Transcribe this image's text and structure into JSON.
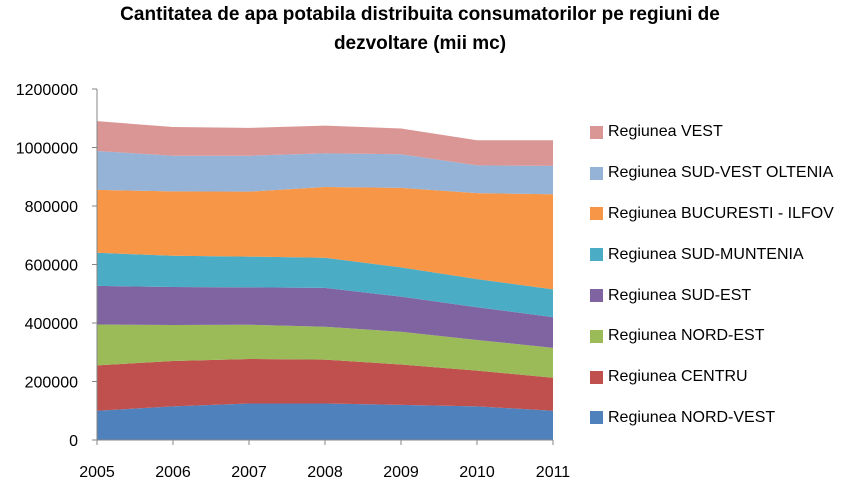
{
  "chart_data": {
    "type": "area",
    "stacked": true,
    "title": "Cantitatea de apa potabila distribuita consumatorilor pe regiuni de dezvoltare  (mii mc)",
    "title_lines": [
      "Cantitatea de apa potabila distribuita consumatorilor pe regiuni de",
      "dezvoltare  (mii mc)"
    ],
    "x": [
      "2005",
      "2006",
      "2007",
      "2008",
      "2009",
      "2010",
      "2011"
    ],
    "ylim": [
      0,
      1200000
    ],
    "yticks": [
      "0",
      "200000",
      "400000",
      "600000",
      "800000",
      "1000000",
      "1200000"
    ],
    "grid": false,
    "legend_position": "right",
    "series": [
      {
        "name": "Regiunea NORD-VEST",
        "color": "#4f81bd",
        "values": [
          100000,
          115000,
          125000,
          125000,
          120000,
          115000,
          100000
        ]
      },
      {
        "name": "Regiunea CENTRU",
        "color": "#c0504d",
        "values": [
          155000,
          155000,
          152000,
          150000,
          138000,
          122000,
          113000
        ]
      },
      {
        "name": "Regiunea NORD-EST",
        "color": "#9bbb59",
        "values": [
          140000,
          123000,
          117000,
          112000,
          112000,
          105000,
          102000
        ]
      },
      {
        "name": "Regiunea SUD-EST",
        "color": "#8064a2",
        "values": [
          132000,
          130000,
          128000,
          133000,
          120000,
          112000,
          105000
        ]
      },
      {
        "name": "Regiunea SUD-MUNTENIA",
        "color": "#4bacc6",
        "values": [
          113000,
          107000,
          105000,
          103000,
          100000,
          96000,
          95000
        ]
      },
      {
        "name": "Regiunea BUCURESTI - ILFOV",
        "color": "#f79646",
        "values": [
          215000,
          220000,
          222000,
          242000,
          272000,
          294000,
          325000
        ]
      },
      {
        "name": "Regiunea SUD-VEST OLTENIA",
        "color": "#95b3d7",
        "values": [
          133000,
          122000,
          123000,
          115000,
          115000,
          95000,
          97000
        ]
      },
      {
        "name": "Regiunea VEST",
        "color": "#d99694",
        "values": [
          102000,
          98000,
          95000,
          95000,
          88000,
          86000,
          88000
        ]
      }
    ]
  }
}
